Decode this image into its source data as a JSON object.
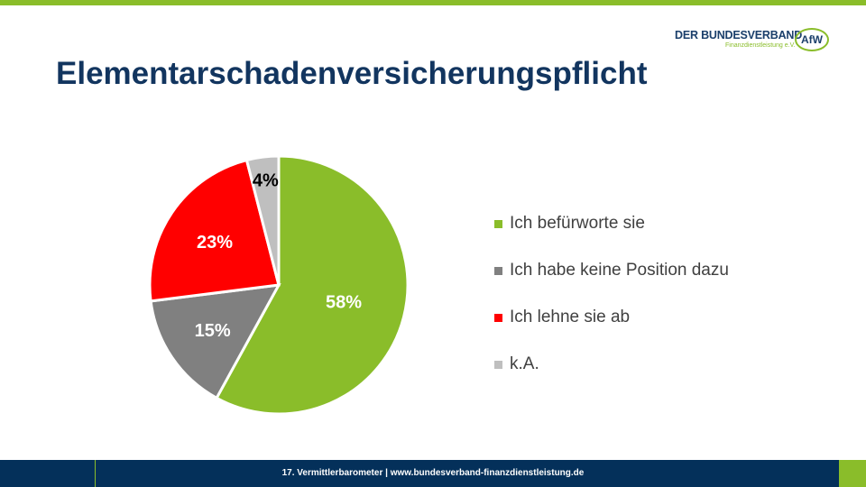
{
  "logo": {
    "line1": "DER BUNDESVERBAND",
    "line2": "Finanzdienstleistung e.V.",
    "badge": "AfW"
  },
  "title": "Elementarschadenversicherungspflicht",
  "chart_data": {
    "type": "pie",
    "start": "12 o'clock, clockwise",
    "slices": [
      {
        "label": "Ich befürworte sie",
        "value": 58,
        "data_label": "58%",
        "color": "#8abd2a",
        "label_color": "#ffffff"
      },
      {
        "label": "Ich habe keine Position dazu",
        "value": 15,
        "data_label": "15%",
        "color": "#808080",
        "label_color": "#ffffff"
      },
      {
        "label": "Ich lehne sie ab",
        "value": 23,
        "data_label": "23%",
        "color": "#ff0000",
        "label_color": "#ffffff"
      },
      {
        "label": "k.A.",
        "value": 4,
        "data_label": "4%",
        "color": "#bfbfbf",
        "label_color": "#000000"
      }
    ],
    "legend_position": "right"
  },
  "footer": {
    "text": "17. Vermittlerbarometer | www.bundesverband-finanzdienstleistung.de"
  }
}
